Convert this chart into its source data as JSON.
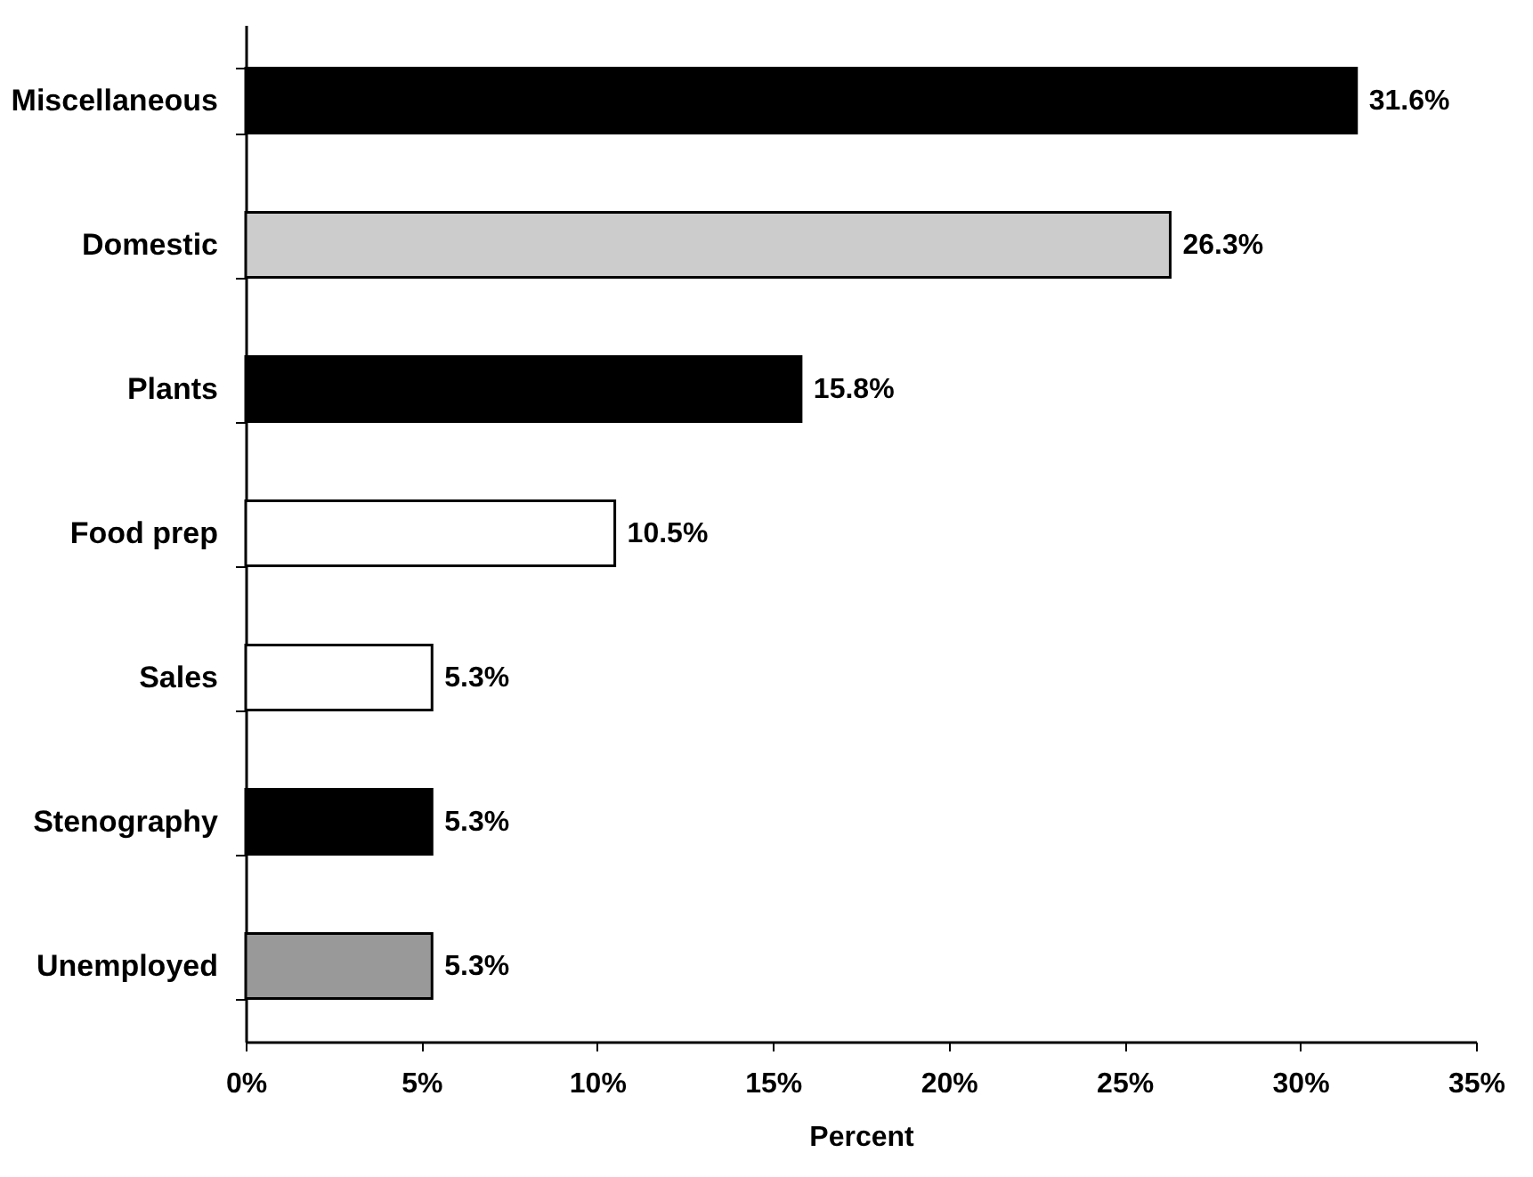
{
  "chart_data": {
    "type": "bar",
    "orientation": "horizontal",
    "xlabel": "Percent",
    "categories": [
      "Miscellaneous",
      "Domestic",
      "Plants",
      "Food prep",
      "Sales",
      "Stenography",
      "Unemployed"
    ],
    "values": [
      31.6,
      26.3,
      15.8,
      10.5,
      5.3,
      5.3,
      5.3
    ],
    "colors": [
      "#000000",
      "#cccccc",
      "#000000",
      "#ffffff",
      "#ffffff",
      "#000000",
      "#999999"
    ],
    "value_labels": [
      "31.6%",
      "26.3%",
      "15.8%",
      "10.5%",
      "5.3%",
      "5.3%",
      "5.3%"
    ],
    "xlim": [
      0,
      35
    ],
    "xticks": [
      {
        "value": 0,
        "label": "0%"
      },
      {
        "value": 5,
        "label": "5%"
      },
      {
        "value": 10,
        "label": "10%"
      },
      {
        "value": 15,
        "label": "15%"
      },
      {
        "value": 20,
        "label": "20%"
      },
      {
        "value": 25,
        "label": "25%"
      },
      {
        "value": 30,
        "label": "30%"
      },
      {
        "value": 35,
        "label": "35%"
      }
    ]
  }
}
